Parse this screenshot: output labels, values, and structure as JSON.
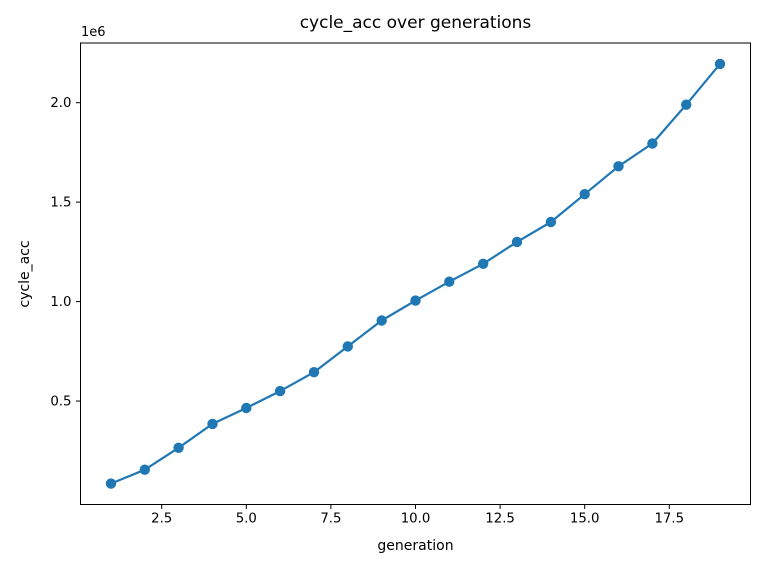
{
  "figure": {
    "background": "#ffffff"
  },
  "chart_data": {
    "type": "line",
    "title": "cycle_acc over generations",
    "xlabel": "generation",
    "ylabel": "cycle_acc",
    "y_offset_label": "1e6",
    "series": [
      {
        "name": "cycle_acc",
        "x": [
          1,
          2,
          3,
          4,
          5,
          6,
          7,
          8,
          9,
          10,
          11,
          12,
          13,
          14,
          15,
          16,
          17,
          18,
          19
        ],
        "y": [
          85000,
          155000,
          265000,
          385000,
          465000,
          550000,
          645000,
          775000,
          905000,
          1005000,
          1100000,
          1190000,
          1300000,
          1400000,
          1540000,
          1680000,
          1795000,
          1990000,
          2195000
        ]
      }
    ],
    "xlim": [
      0.1,
      19.9
    ],
    "ylim": [
      -20000,
      2300000
    ],
    "xticks": [
      2.5,
      5.0,
      7.5,
      10.0,
      12.5,
      15.0,
      17.5
    ],
    "xtick_labels": [
      "2.5",
      "5.0",
      "7.5",
      "10.0",
      "12.5",
      "15.0",
      "17.5"
    ],
    "yticks": [
      500000,
      1000000,
      1500000,
      2000000
    ],
    "ytick_labels": [
      "0.5",
      "1.0",
      "1.5",
      "2.0"
    ],
    "grid": false,
    "legend": null,
    "line_color": "#1f77b4",
    "marker": "circle",
    "marker_color": "#1f77b4",
    "spine_color": "#000000",
    "text_color": "#000000"
  }
}
